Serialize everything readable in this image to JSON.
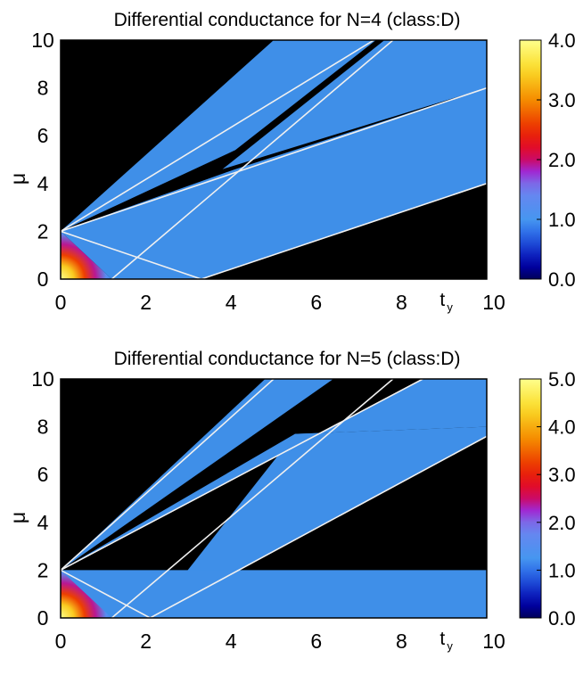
{
  "chart_data": [
    {
      "type": "heatmap",
      "title": "Differential conductance for N=4 (class:D)",
      "xlabel_main": "t",
      "xlabel_sub": "y",
      "ylabel": "μ",
      "xlim": [
        0,
        10
      ],
      "ylim": [
        0,
        10
      ],
      "xticks": [
        "0",
        "2",
        "4",
        "6",
        "8",
        "10"
      ],
      "yticks": [
        "0",
        "2",
        "4",
        "6",
        "8",
        "10"
      ],
      "colorbar": {
        "min": 0,
        "max": 4,
        "ticks": [
          "0.0",
          "1.0",
          "2.0",
          "3.0",
          "4.0"
        ]
      },
      "colors": {
        "background": "#000000",
        "plateau": "#3f8fe8",
        "boundary": "#f0f0f0"
      },
      "regions": [
        {
          "name": "upper-wedge",
          "value": 1.0,
          "points": [
            [
              0,
              2
            ],
            [
              7.28,
              10
            ],
            [
              3.8,
              10
            ],
            [
              0,
              2.0
            ]
          ],
          "polygon": [
            [
              0,
              2
            ],
            [
              5.0,
              10
            ],
            [
              7.4,
              10
            ],
            [
              4.1,
              5.4
            ],
            [
              0,
              2
            ]
          ]
        },
        {
          "name": "middle-band",
          "value": 1.0,
          "polygon": [
            [
              0,
              2
            ],
            [
              4.1,
              4.6
            ],
            [
              10,
              8.0
            ],
            [
              10,
              4.0
            ],
            [
              3.3,
              0
            ],
            [
              1.2,
              0
            ],
            [
              0,
              2
            ]
          ]
        },
        {
          "name": "upper-right-band",
          "value": 1.0,
          "polygon": [
            [
              3.8,
              4.6
            ],
            [
              7.6,
              10
            ],
            [
              10,
              10
            ],
            [
              10,
              8.0
            ],
            [
              3.8,
              4.6
            ]
          ]
        }
      ],
      "boundary_lines": [
        [
          [
            0,
            2
          ],
          [
            7.35,
            10
          ]
        ],
        [
          [
            0,
            2
          ],
          [
            10,
            8.0
          ]
        ],
        [
          [
            0,
            2
          ],
          [
            3.3,
            0
          ]
        ],
        [
          [
            1.2,
            0
          ],
          [
            7.8,
            10
          ]
        ],
        [
          [
            3.3,
            0
          ],
          [
            10,
            4.0
          ]
        ]
      ],
      "hotspot": {
        "points": [
          [
            0,
            0
          ],
          [
            0,
            2
          ],
          [
            1.2,
            0
          ]
        ],
        "peak_value": 4.0
      }
    },
    {
      "type": "heatmap",
      "title": "Differential conductance for N=5 (class:D)",
      "xlabel_main": "t",
      "xlabel_sub": "y",
      "ylabel": "μ",
      "xlim": [
        0,
        10
      ],
      "ylim": [
        0,
        10
      ],
      "xticks": [
        "0",
        "2",
        "4",
        "6",
        "8",
        "10"
      ],
      "yticks": [
        "0",
        "2",
        "4",
        "6",
        "8",
        "10"
      ],
      "colorbar": {
        "min": 0,
        "max": 5,
        "ticks": [
          "0.0",
          "1.0",
          "2.0",
          "3.0",
          "4.0",
          "5.0"
        ]
      },
      "colors": {
        "background": "#000000",
        "plateau": "#3f8fe8",
        "boundary": "#f0f0f0"
      },
      "regions": [
        {
          "name": "upper-wedge",
          "value": 1.0,
          "polygon": [
            [
              0,
              2
            ],
            [
              4.8,
              10
            ],
            [
              6.4,
              10
            ],
            [
              0,
              2
            ]
          ]
        },
        {
          "name": "middle-wedge",
          "value": 1.0,
          "polygon": [
            [
              0,
              2
            ],
            [
              8.5,
              10
            ],
            [
              10,
              10
            ],
            [
              10,
              8.0
            ],
            [
              5.5,
              7.7
            ],
            [
              0,
              2
            ]
          ]
        },
        {
          "name": "lower-right-band",
          "value": 1.0,
          "polygon": [
            [
              2.1,
              0
            ],
            [
              5.5,
              7.7
            ],
            [
              10,
              8.0
            ],
            [
              10,
              7.6
            ],
            [
              2.1,
              0
            ]
          ]
        },
        {
          "name": "bottom-band",
          "value": 1.0,
          "polygon": [
            [
              0,
              2
            ],
            [
              10,
              2
            ],
            [
              10,
              0
            ],
            [
              0,
              0
            ]
          ]
        }
      ],
      "boundary_lines": [
        [
          [
            0,
            2
          ],
          [
            5.0,
            10
          ]
        ],
        [
          [
            0,
            2
          ],
          [
            8.5,
            10
          ]
        ],
        [
          [
            1.2,
            0
          ],
          [
            7.8,
            10
          ]
        ],
        [
          [
            2.1,
            0
          ],
          [
            10,
            7.6
          ]
        ],
        [
          [
            0,
            2
          ],
          [
            2.1,
            0
          ]
        ]
      ],
      "hotspot": {
        "points": [
          [
            0,
            0
          ],
          [
            0,
            2
          ],
          [
            1.2,
            0
          ]
        ],
        "peak_value": 5.0
      }
    }
  ]
}
